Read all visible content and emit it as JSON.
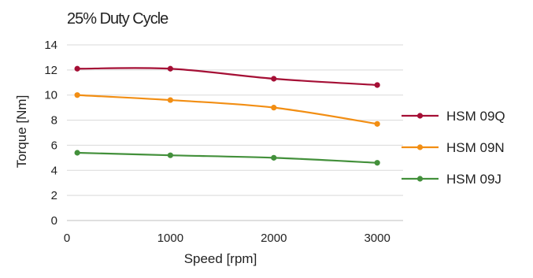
{
  "chart_data": {
    "type": "line",
    "title": "25% Duty Cycle",
    "xlabel": "Speed [rpm]",
    "ylabel": "Torque [Nm]",
    "xlim": [
      0,
      3250
    ],
    "ylim": [
      0,
      14
    ],
    "xticks": [
      0,
      1000,
      2000,
      3000
    ],
    "yticks": [
      0,
      2,
      4,
      6,
      8,
      10,
      12,
      14
    ],
    "xtick_labels": [
      "0",
      "1000",
      "2000",
      "3000"
    ],
    "ytick_labels": [
      "0",
      "2",
      "4",
      "6",
      "8",
      "10",
      "12",
      "14"
    ],
    "grid": "horizontal",
    "legend_position": "right",
    "series": [
      {
        "name": "HSM 09Q",
        "color": "#A50F35",
        "x": [
          100,
          1000,
          2000,
          3000
        ],
        "y": [
          12.1,
          12.1,
          11.3,
          10.8
        ]
      },
      {
        "name": "HSM 09N",
        "color": "#F28E13",
        "x": [
          100,
          1000,
          2000,
          3000
        ],
        "y": [
          10.0,
          9.6,
          9.0,
          7.7
        ]
      },
      {
        "name": "HSM 09J",
        "color": "#43903B",
        "x": [
          100,
          1000,
          2000,
          3000
        ],
        "y": [
          5.4,
          5.2,
          5.0,
          4.6
        ]
      }
    ]
  }
}
